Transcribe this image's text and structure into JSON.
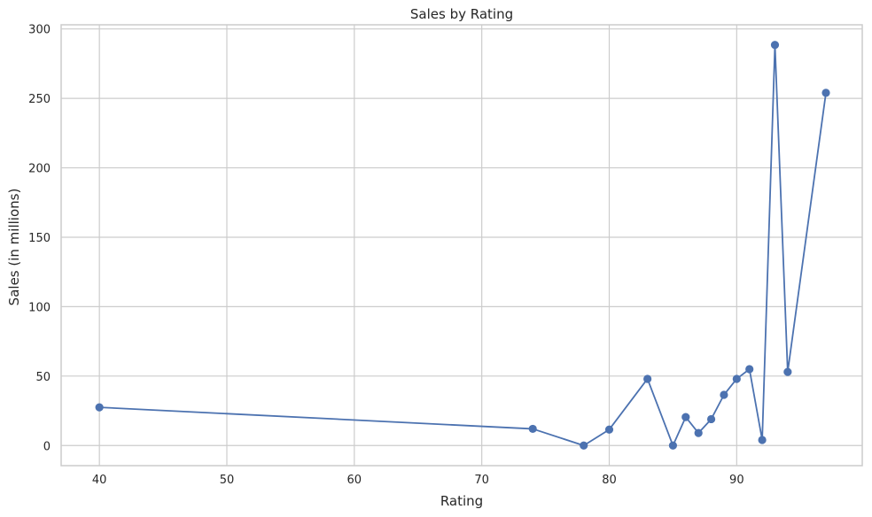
{
  "colors": {
    "series": "#4c72b0",
    "grid": "#cccccc",
    "text": "#262626",
    "background": "#ffffff"
  },
  "chart_data": {
    "type": "line",
    "title": "Sales by Rating",
    "xlabel": "Rating",
    "ylabel": "Sales (in millions)",
    "xlim": [
      37,
      99.85
    ],
    "ylim": [
      -14.5,
      303
    ],
    "xticks": [
      40,
      50,
      60,
      70,
      80,
      90
    ],
    "yticks": [
      0,
      50,
      100,
      150,
      200,
      250,
      300
    ],
    "grid": true,
    "markers": true,
    "series": [
      {
        "x": [
          40,
          74,
          78,
          80,
          83,
          85,
          86,
          87,
          88,
          89,
          90,
          91,
          92,
          93,
          94,
          97
        ],
        "y": [
          27.5,
          12,
          0,
          11.5,
          48,
          0,
          20.5,
          9,
          19,
          36.5,
          48,
          55,
          4,
          288.5,
          53,
          254
        ]
      }
    ]
  }
}
